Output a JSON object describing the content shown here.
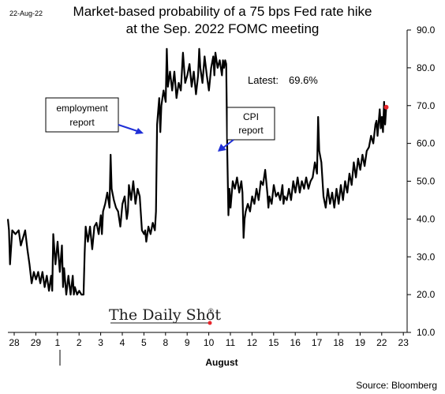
{
  "header": {
    "date": "22-Aug-22",
    "title_line1": "Market-based probability of a 75 bps Fed rate hike",
    "title_line2": "at the Sep. 2022 FOMC meeting"
  },
  "latest": {
    "label": "Latest:",
    "value": "69.6%"
  },
  "callouts": {
    "employment": {
      "line1": "employment",
      "line2": "report"
    },
    "cpi": {
      "line1": "CPI",
      "line2": "report"
    }
  },
  "logo": {
    "text": "The Daily Shot",
    "mark": "®"
  },
  "source": "Source: Bloomberg",
  "colors": {
    "series": "#000000",
    "latest_marker": "#e8252b",
    "arrow": "#1f2fd6",
    "logo_dot": "#e8252b"
  },
  "chart_data": {
    "type": "line",
    "title": "Market-based probability of a 75 bps Fed rate hike at the Sep. 2022 FOMC meeting",
    "xlabel": "August",
    "ylabel": "",
    "x_tick_labels": [
      "28",
      "29",
      "1",
      "2",
      "3",
      "4",
      "5",
      "8",
      "9",
      "10",
      "11",
      "12",
      "15",
      "16",
      "17",
      "18",
      "19",
      "22",
      "23"
    ],
    "y_tick_labels": [
      "10.0",
      "20.0",
      "30.0",
      "40.0",
      "50.0",
      "60.0",
      "70.0",
      "80.0",
      "90.0"
    ],
    "ylim": [
      10,
      90
    ],
    "grid": false,
    "legend": "none",
    "annotations": [
      "employment report",
      "CPI report",
      "Latest: 69.6%"
    ],
    "latest_value": 69.6,
    "series": [
      {
        "values": [
          [
            0.0,
            40
          ],
          [
            0.05,
            37
          ],
          [
            0.1,
            28
          ],
          [
            0.2,
            37
          ],
          [
            0.35,
            36
          ],
          [
            0.5,
            37
          ],
          [
            0.6,
            33
          ],
          [
            0.8,
            37
          ],
          [
            0.9,
            32
          ],
          [
            1.0,
            28
          ],
          [
            1.1,
            23
          ],
          [
            1.2,
            26
          ],
          [
            1.3,
            24
          ],
          [
            1.4,
            26
          ],
          [
            1.5,
            23
          ],
          [
            1.6,
            26
          ],
          [
            1.7,
            22
          ],
          [
            1.8,
            25
          ],
          [
            1.9,
            21
          ],
          [
            2.0,
            25
          ],
          [
            2.05,
            21
          ],
          [
            2.1,
            36
          ],
          [
            2.2,
            28
          ],
          [
            2.3,
            34
          ],
          [
            2.4,
            26
          ],
          [
            2.5,
            33
          ],
          [
            2.55,
            22
          ],
          [
            2.6,
            27
          ],
          [
            2.7,
            20
          ],
          [
            2.8,
            25
          ],
          [
            2.9,
            20
          ],
          [
            3.0,
            25
          ],
          [
            3.05,
            20
          ],
          [
            3.1,
            22
          ],
          [
            3.2,
            20
          ],
          [
            3.3,
            21
          ],
          [
            3.4,
            20
          ],
          [
            3.5,
            20
          ],
          [
            3.55,
            31
          ],
          [
            3.6,
            38
          ],
          [
            3.7,
            34
          ],
          [
            3.8,
            38
          ],
          [
            3.9,
            32
          ],
          [
            4.0,
            38
          ],
          [
            4.1,
            39
          ],
          [
            4.2,
            36
          ],
          [
            4.3,
            41
          ],
          [
            4.35,
            36
          ],
          [
            4.4,
            42
          ],
          [
            4.5,
            44
          ],
          [
            4.6,
            47
          ],
          [
            4.7,
            43
          ],
          [
            4.75,
            57
          ],
          [
            4.8,
            48
          ],
          [
            4.9,
            45
          ],
          [
            5.0,
            43
          ],
          [
            5.1,
            42
          ],
          [
            5.2,
            38
          ],
          [
            5.3,
            44
          ],
          [
            5.4,
            46
          ],
          [
            5.5,
            40
          ],
          [
            5.55,
            42
          ],
          [
            5.6,
            49
          ],
          [
            5.7,
            45
          ],
          [
            5.8,
            50
          ],
          [
            5.9,
            44
          ],
          [
            6.0,
            48
          ],
          [
            6.1,
            46
          ],
          [
            6.2,
            37
          ],
          [
            6.3,
            36
          ],
          [
            6.35,
            37
          ],
          [
            6.4,
            34
          ],
          [
            6.5,
            38
          ],
          [
            6.6,
            36
          ],
          [
            6.7,
            39
          ],
          [
            6.8,
            37
          ],
          [
            6.85,
            42
          ],
          [
            6.9,
            65
          ],
          [
            7.0,
            72
          ],
          [
            7.05,
            63
          ],
          [
            7.1,
            70
          ],
          [
            7.2,
            74
          ],
          [
            7.3,
            71
          ],
          [
            7.35,
            85
          ],
          [
            7.4,
            75
          ],
          [
            7.5,
            79
          ],
          [
            7.6,
            74
          ],
          [
            7.7,
            79
          ],
          [
            7.8,
            72
          ],
          [
            7.9,
            76
          ],
          [
            8.0,
            74
          ],
          [
            8.1,
            84
          ],
          [
            8.2,
            76
          ],
          [
            8.3,
            78
          ],
          [
            8.4,
            81
          ],
          [
            8.5,
            75
          ],
          [
            8.6,
            79
          ],
          [
            8.7,
            73
          ],
          [
            8.8,
            78
          ],
          [
            8.85,
            85
          ],
          [
            8.9,
            80
          ],
          [
            9.0,
            76
          ],
          [
            9.1,
            83
          ],
          [
            9.2,
            78
          ],
          [
            9.3,
            74
          ],
          [
            9.4,
            80
          ],
          [
            9.5,
            83
          ],
          [
            9.55,
            78
          ],
          [
            9.6,
            84
          ],
          [
            9.7,
            80
          ],
          [
            9.8,
            82
          ],
          [
            9.9,
            78
          ],
          [
            9.95,
            82
          ],
          [
            10.0,
            80
          ],
          [
            10.05,
            82
          ],
          [
            10.1,
            81
          ],
          [
            10.15,
            57
          ],
          [
            10.2,
            41
          ],
          [
            10.25,
            48
          ],
          [
            10.3,
            43
          ],
          [
            10.4,
            50
          ],
          [
            10.5,
            48
          ],
          [
            10.6,
            51
          ],
          [
            10.7,
            47
          ],
          [
            10.8,
            50
          ],
          [
            10.85,
            47
          ],
          [
            10.9,
            35
          ],
          [
            10.95,
            40
          ],
          [
            11.0,
            42
          ],
          [
            11.1,
            44
          ],
          [
            11.2,
            42
          ],
          [
            11.3,
            46
          ],
          [
            11.4,
            44
          ],
          [
            11.5,
            48
          ],
          [
            11.6,
            45
          ],
          [
            11.7,
            50
          ],
          [
            11.8,
            49
          ],
          [
            11.9,
            53
          ],
          [
            12.0,
            47
          ],
          [
            12.05,
            43
          ],
          [
            12.1,
            46
          ],
          [
            12.2,
            44
          ],
          [
            12.3,
            49
          ],
          [
            12.4,
            46
          ],
          [
            12.5,
            47
          ],
          [
            12.6,
            45
          ],
          [
            12.7,
            49
          ],
          [
            12.75,
            44
          ],
          [
            12.8,
            46
          ],
          [
            12.9,
            45
          ],
          [
            13.0,
            48
          ],
          [
            13.1,
            45
          ],
          [
            13.2,
            50
          ],
          [
            13.3,
            47
          ],
          [
            13.4,
            51
          ],
          [
            13.5,
            47
          ],
          [
            13.6,
            50
          ],
          [
            13.7,
            48
          ],
          [
            13.8,
            51
          ],
          [
            13.9,
            48
          ],
          [
            14.0,
            50
          ],
          [
            14.1,
            51
          ],
          [
            14.2,
            55
          ],
          [
            14.3,
            52
          ],
          [
            14.35,
            67
          ],
          [
            14.4,
            58
          ],
          [
            14.5,
            55
          ],
          [
            14.6,
            46
          ],
          [
            14.7,
            43
          ],
          [
            14.8,
            48
          ],
          [
            14.9,
            44
          ],
          [
            15.0,
            47
          ],
          [
            15.1,
            43
          ],
          [
            15.2,
            48
          ],
          [
            15.3,
            44
          ],
          [
            15.4,
            49
          ],
          [
            15.5,
            45
          ],
          [
            15.6,
            50
          ],
          [
            15.7,
            47
          ],
          [
            15.8,
            52
          ],
          [
            15.9,
            49
          ],
          [
            16.0,
            55
          ],
          [
            16.1,
            51
          ],
          [
            16.2,
            56
          ],
          [
            16.3,
            53
          ],
          [
            16.4,
            57
          ],
          [
            16.5,
            54
          ],
          [
            16.6,
            58
          ],
          [
            16.7,
            59
          ],
          [
            16.8,
            62
          ],
          [
            16.9,
            60
          ],
          [
            17.0,
            65
          ],
          [
            17.05,
            66
          ],
          [
            17.1,
            62
          ],
          [
            17.2,
            69
          ],
          [
            17.25,
            64
          ],
          [
            17.3,
            67
          ],
          [
            17.35,
            63
          ],
          [
            17.4,
            71
          ],
          [
            17.45,
            65
          ],
          [
            17.5,
            69.6
          ]
        ]
      }
    ]
  }
}
